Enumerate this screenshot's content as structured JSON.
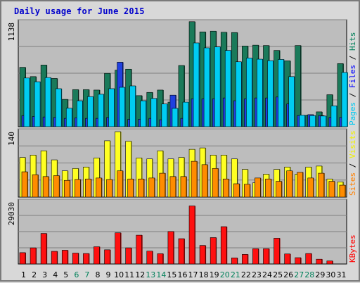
{
  "chart_data": {
    "type": "bar",
    "title": "Daily usage for June 2015",
    "categories": [
      "1",
      "2",
      "3",
      "4",
      "5",
      "6",
      "7",
      "8",
      "9",
      "10",
      "11",
      "12",
      "13",
      "14",
      "15",
      "16",
      "17",
      "18",
      "19",
      "20",
      "21",
      "22",
      "23",
      "24",
      "25",
      "26",
      "27",
      "28",
      "29",
      "30",
      "31"
    ],
    "weekend_days": [
      "6",
      "7",
      "13",
      "14",
      "20",
      "21",
      "27",
      "28"
    ],
    "grid": true,
    "panels": [
      {
        "id": "hits-files-pages",
        "ymax_label": "1138",
        "ylim": [
          0,
          1138
        ],
        "legend": [
          {
            "text": "Pages",
            "color": "#00c8f0"
          },
          {
            "text": " / ",
            "color": "#000000"
          },
          {
            "text": "Files",
            "color": "#0000ff"
          },
          {
            "text": " / ",
            "color": "#000000"
          },
          {
            "text": "Hits",
            "color": "#00805a"
          }
        ],
        "series": [
          {
            "name": "Hits",
            "color": "#1a7a5a",
            "values": [
              640,
              540,
              665,
              520,
              295,
              400,
              400,
              395,
              575,
              610,
              620,
              335,
              370,
              395,
              265,
              660,
              1132,
              1022,
              1030,
              1018,
              1015,
              870,
              879,
              875,
              822,
              710,
              875,
              125,
              160,
              345,
              680
            ]
          },
          {
            "name": "Files",
            "color": "#2040e0",
            "values": [
              120,
              110,
              105,
              100,
              90,
              95,
              90,
              90,
              100,
              695,
              80,
              80,
              90,
              75,
              340,
              90,
              300,
              300,
              300,
              310,
              280,
              300,
              310,
              310,
              320,
              245,
              120,
              130,
              120,
              100,
              100
            ]
          },
          {
            "name": "Pages",
            "color": "#00ccf2",
            "values": [
              525,
              485,
              530,
              410,
              200,
              280,
              325,
              350,
              410,
              425,
              440,
              280,
              305,
              245,
              198,
              265,
              903,
              850,
              860,
              822,
              700,
              740,
              728,
              712,
              725,
              540,
              125,
              120,
              115,
              225,
              585
            ]
          }
        ]
      },
      {
        "id": "visits-sites",
        "ymax_label": "140",
        "ylim": [
          0,
          140
        ],
        "legend": [
          {
            "text": "Sites",
            "color": "#ff8000"
          },
          {
            "text": " / ",
            "color": "#000000"
          },
          {
            "text": "Visits",
            "color": "#f0f000"
          }
        ],
        "series": [
          {
            "name": "Visits",
            "color": "#ffff22",
            "values": [
              83,
              88,
              97,
              78,
              55,
              60,
              63,
              82,
              118,
              137,
              117,
              82,
              80,
              97,
              80,
              83,
              100,
              103,
              88,
              88,
              80,
              58,
              30,
              48,
              58,
              63,
              48,
              63,
              65,
              38,
              32
            ]
          },
          {
            "name": "Sites",
            "color": "#ff8c00",
            "values": [
              53,
              47,
              43,
              45,
              35,
              37,
              38,
              40,
              37,
              55,
              38,
              38,
              40,
              50,
              43,
              43,
              75,
              68,
              60,
              38,
              28,
              27,
              40,
              38,
              33,
              55,
              52,
              40,
              50,
              33,
              25
            ]
          }
        ]
      },
      {
        "id": "kbytes",
        "ymax_label": "29030",
        "ylim": [
          0,
          29030
        ],
        "legend": [
          {
            "text": "KBytes",
            "color": "#ff0000"
          }
        ],
        "series": [
          {
            "name": "KBytes",
            "color": "#ff1010",
            "values": [
              5200,
              7400,
              14000,
              5800,
              6300,
              5000,
              4800,
              7900,
              6500,
              14300,
              7400,
              13200,
              5900,
              4700,
              14900,
              11600,
              26600,
              8500,
              12100,
              17100,
              2800,
              4400,
              7000,
              7000,
              11800,
              4600,
              2900,
              4800,
              2200,
              1400,
              0
            ]
          }
        ]
      }
    ]
  }
}
